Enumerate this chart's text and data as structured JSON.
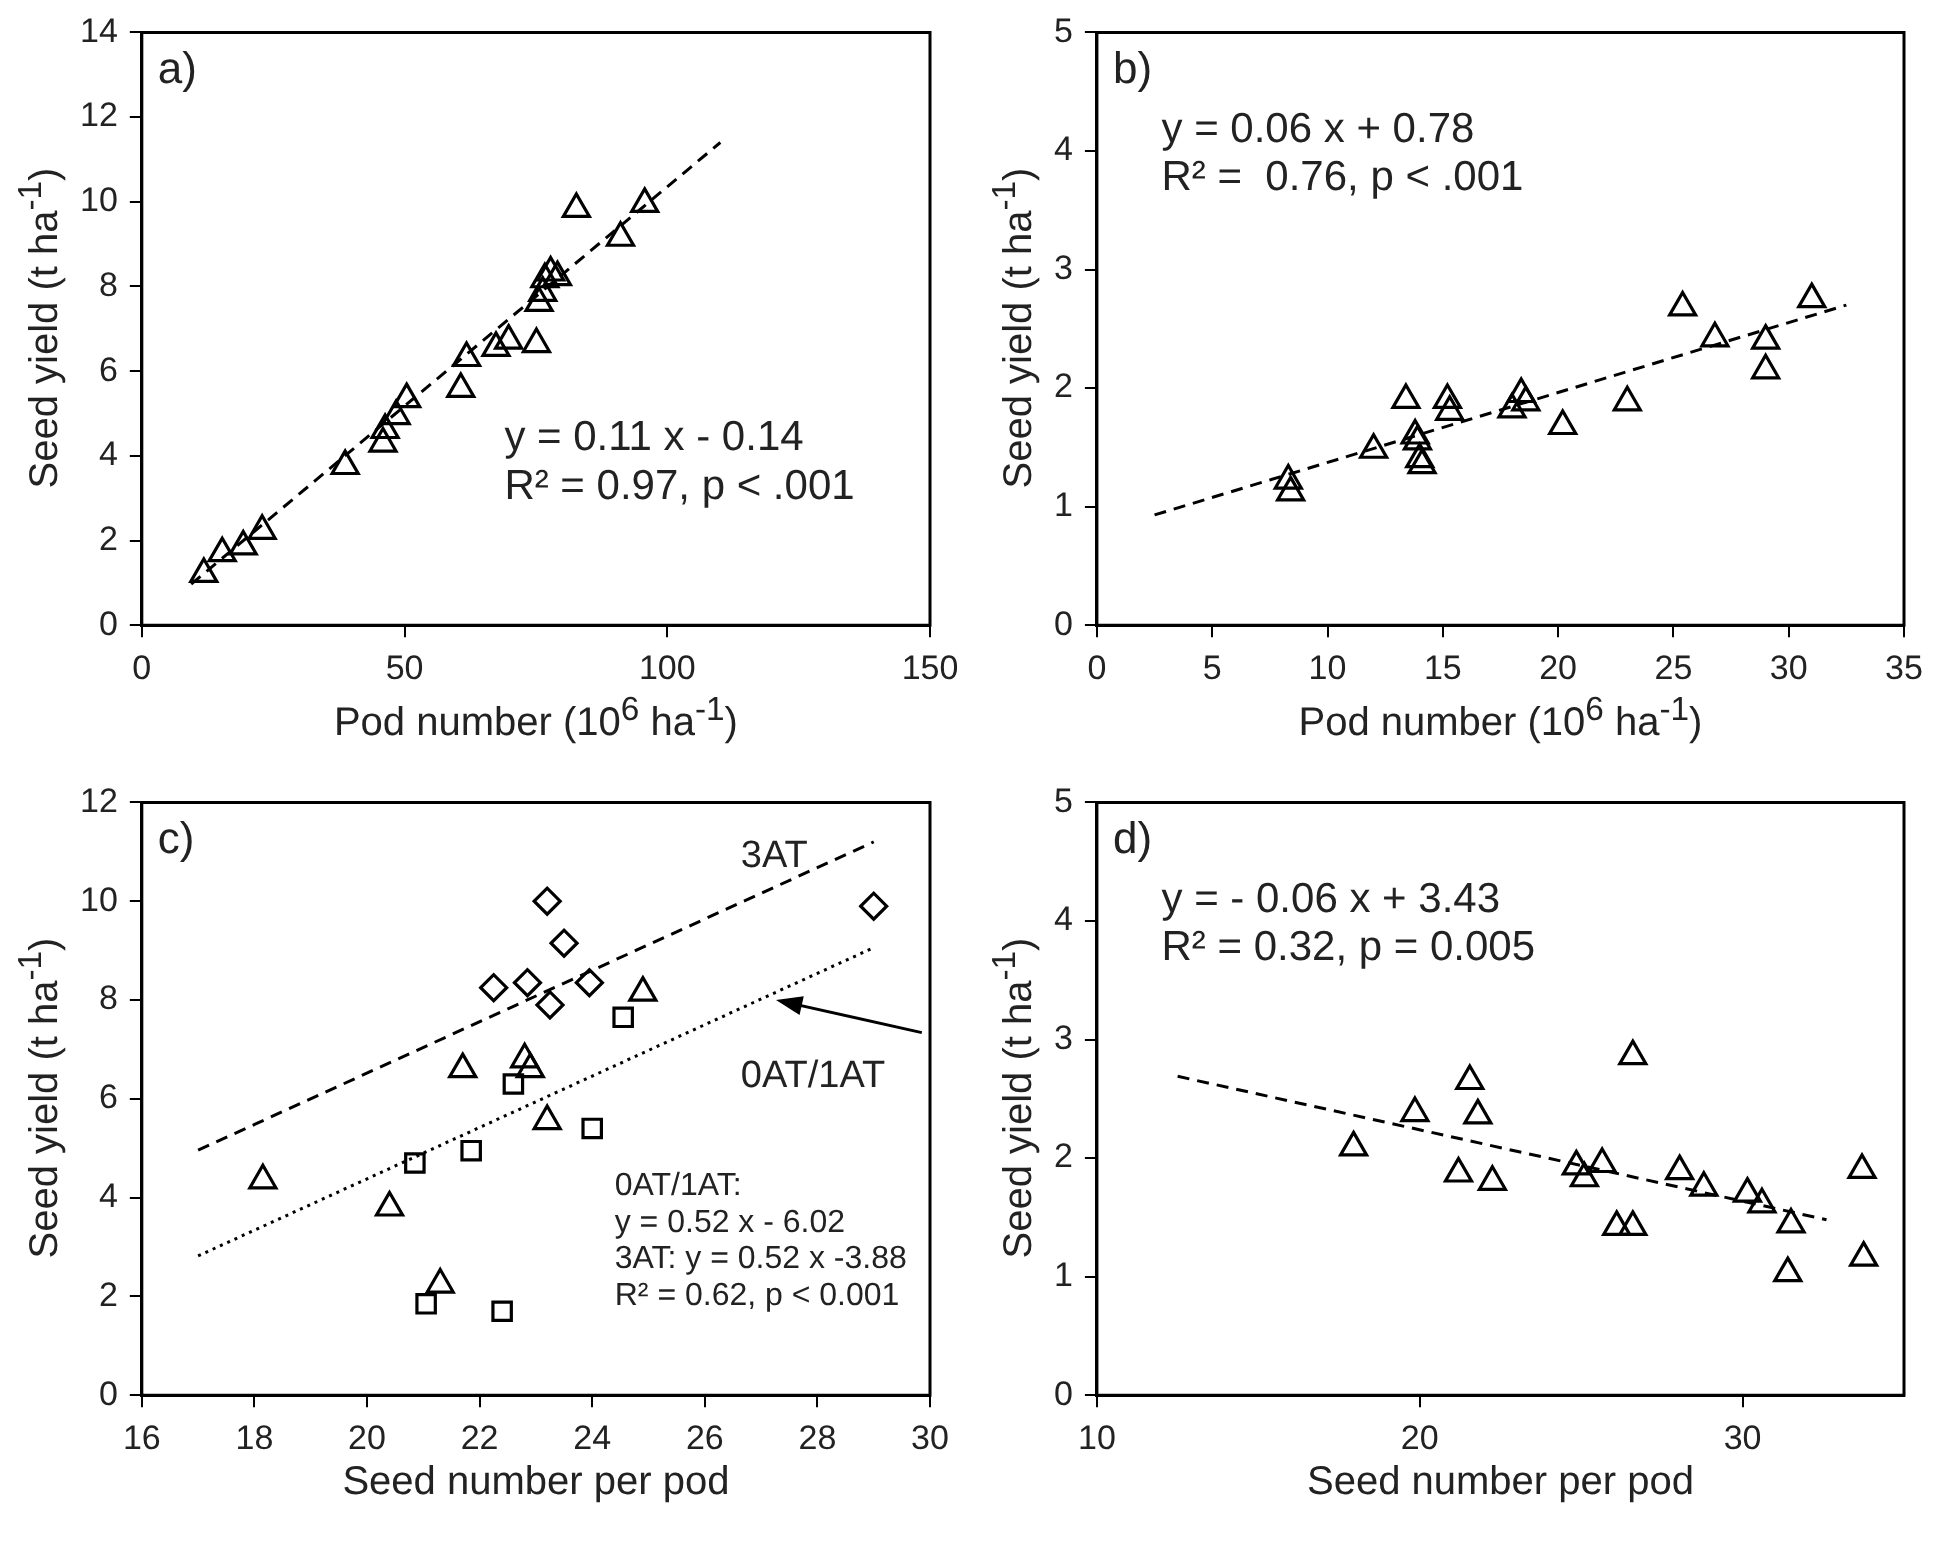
{
  "chart_data": [
    {
      "type": "scatter",
      "title": "a)",
      "xlabel": "Pod number (10$^{6}$ ha$^{-1}$)",
      "ylabel": "Seed yield (t ha$^{-1}$)",
      "xlim": [
        0,
        150
      ],
      "xticks": [
        0,
        50,
        100,
        150
      ],
      "ylim": [
        0,
        14
      ],
      "yticks": [
        0,
        2,
        4,
        6,
        8,
        10,
        12,
        14
      ],
      "annotations": [
        "y = 0.11 x - 0.14",
        "R² = 0.97, p < .001"
      ],
      "series": [
        {
          "type": "scatter",
          "color": "#000000",
          "marker": "triangle",
          "x": [
            11.8,
            15.3,
            19.3,
            22.9,
            38.7,
            45.9,
            46.3,
            48.4,
            50.4,
            60.7,
            61.8,
            67.4,
            69.8,
            75.1,
            75.6,
            76.3,
            76.7,
            77.8,
            79.1,
            82.7,
            91.1,
            95.7
          ],
          "values": [
            1.21,
            1.7,
            1.86,
            2.23,
            3.76,
            4.29,
            4.61,
            4.94,
            5.34,
            5.58,
            6.31,
            6.55,
            6.72,
            6.64,
            7.61,
            7.85,
            8.17,
            8.33,
            8.22,
            9.83,
            9.15,
            9.95
          ]
        },
        {
          "type": "line",
          "color": "#000000",
          "marker": "none",
          "line_style": "dashed",
          "x": [
            9.4,
            110.1
          ],
          "values": [
            0.97,
            11.4
          ]
        }
      ]
    },
    {
      "type": "scatter",
      "title": "b)",
      "xlabel": "Pod number (10$^{6}$ ha$^{-1}$)",
      "ylabel": "Seed yield (t ha$^{-1}$)",
      "xlim": [
        0,
        35
      ],
      "xticks": [
        0,
        5,
        10,
        15,
        20,
        25,
        30,
        35
      ],
      "ylim": [
        0,
        5
      ],
      "yticks": [
        0,
        1,
        2,
        3,
        4,
        5
      ],
      "annotations": [
        "y = 0.06 x + 0.78",
        "R² =  0.76, p < .001"
      ],
      "series": [
        {
          "type": "scatter",
          "color": "#000000",
          "marker": "triangle",
          "x": [
            8.3,
            8.4,
            12,
            13.4,
            13.8,
            13.9,
            14,
            14.1,
            15.2,
            15.3,
            18,
            18.4,
            18.6,
            20.2,
            23,
            25.4,
            26.8,
            29,
            29,
            31
          ],
          "values": [
            1.22,
            1.12,
            1.48,
            1.9,
            1.6,
            1.55,
            1.4,
            1.35,
            1.9,
            1.8,
            1.82,
            1.95,
            1.88,
            1.68,
            1.88,
            2.68,
            2.42,
            2.4,
            2.15,
            2.75
          ]
        },
        {
          "type": "line",
          "color": "#000000",
          "marker": "none",
          "line_style": "dashed",
          "x": [
            2.5,
            32.5
          ],
          "values": [
            0.93,
            2.7
          ]
        }
      ]
    },
    {
      "type": "scatter",
      "title": "c)",
      "xlabel": "Seed number per pod",
      "ylabel": "Seed yield (t ha$^{-1}$)",
      "xlim": [
        16,
        30
      ],
      "xticks": [
        16,
        18,
        20,
        22,
        24,
        26,
        28,
        30
      ],
      "ylim": [
        0,
        12
      ],
      "yticks": [
        0,
        2,
        4,
        6,
        8,
        10,
        12
      ],
      "annotations": [
        "0AT/1AT:",
        "y = 0.52 x - 6.02",
        "3AT: y = 0.52 x -3.88",
        "R² = 0.62, p < 0.001",
        "3AT",
        "0AT/1AT"
      ],
      "series": [
        {
          "type": "scatter",
          "color": "#000000",
          "marker": "triangle",
          "x": [
            18.15,
            20.4,
            21.3,
            21.7,
            22.9,
            22.8,
            23.2,
            24.9
          ],
          "values": [
            4.35,
            3.8,
            2.24,
            6.6,
            6.6,
            6.8,
            5.55,
            8.15
          ]
        },
        {
          "type": "scatter",
          "color": "#000000",
          "marker": "square",
          "x": [
            20.85,
            21.85,
            22.6,
            24.55,
            24.0,
            21.05,
            22.4
          ],
          "values": [
            4.7,
            4.95,
            6.3,
            7.65,
            5.4,
            1.85,
            1.7
          ]
        },
        {
          "type": "scatter",
          "color": "#000000",
          "marker": "diamond",
          "x": [
            23.2,
            23.5,
            22.25,
            22.85,
            23.25,
            23.95,
            29.0
          ],
          "values": [
            10.0,
            9.15,
            8.25,
            8.35,
            7.9,
            8.35,
            9.9
          ]
        },
        {
          "type": "line",
          "color": "#000000",
          "marker": "none",
          "line_style": "dashed",
          "x": [
            17,
            29
          ],
          "values": [
            4.96,
            11.2
          ]
        },
        {
          "type": "line",
          "color": "#000000",
          "marker": "none",
          "line_style": "dotted",
          "x": [
            17,
            29
          ],
          "values": [
            2.82,
            9.06
          ]
        }
      ]
    },
    {
      "type": "scatter",
      "title": "d)",
      "xlabel": "Seed number per pod",
      "ylabel": "Seed yield (t ha$^{-1}$)",
      "xlim": [
        10,
        35
      ],
      "xticks": [
        10,
        20,
        30
      ],
      "ylim": [
        0,
        5
      ],
      "yticks": [
        0,
        1,
        2,
        3,
        4,
        5
      ],
      "annotations": [
        "y = - 0.06 x + 3.43",
        "R² = 0.32, p = 0.005"
      ],
      "series": [
        {
          "type": "scatter",
          "color": "#000000",
          "marker": "triangle",
          "x": [
            17.95,
            19.85,
            21.55,
            21.8,
            21.2,
            22.25,
            24.85,
            25.1,
            25.65,
            26.1,
            26.6,
            26.6,
            28.05,
            28.8,
            30.15,
            30.6,
            31.5,
            31.4,
            33.7,
            33.75
          ],
          "values": [
            2.09,
            2.38,
            2.65,
            2.36,
            1.87,
            1.8,
            1.93,
            1.83,
            1.95,
            1.42,
            1.42,
            2.86,
            1.89,
            1.75,
            1.7,
            1.61,
            1.44,
            1.03,
            1.9,
            1.16
          ]
        },
        {
          "type": "line",
          "color": "#000000",
          "marker": "none",
          "line_style": "dashed",
          "x": [
            12.5,
            32.6
          ],
          "values": [
            2.69,
            1.48
          ]
        }
      ]
    }
  ]
}
